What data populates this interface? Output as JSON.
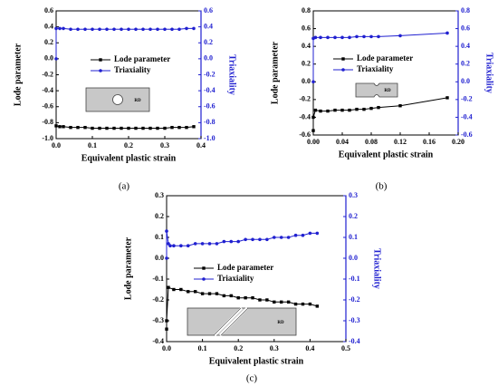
{
  "chart_data": [
    {
      "type": "line",
      "label": "(a)",
      "xlabel": "Equivalent plastic strain",
      "ylabel": "Lode parameter",
      "y2label": "Triaxiality",
      "inset_label": "RD",
      "xlim": [
        0,
        0.4
      ],
      "xticks": [
        {
          "value": 0,
          "label": "0.0"
        },
        0.1,
        0.2,
        0.3,
        0.4
      ],
      "ylim": [
        -1,
        0.6
      ],
      "yticks": [
        {
          "value": -1,
          "label": "-1.0"
        },
        -0.8,
        -0.6,
        -0.4,
        -0.2,
        {
          "value": 0,
          "label": "0.0"
        },
        0.2,
        0.4,
        0.6
      ],
      "y2lim": [
        -1,
        0.6
      ],
      "y2ticks": [
        {
          "value": -1,
          "label": "-1.0"
        },
        -0.8,
        -0.6,
        -0.4,
        -0.2,
        {
          "value": 0,
          "label": "0.0"
        },
        0.2,
        0.4,
        0.6
      ],
      "series": [
        {
          "name": "Lode parameter",
          "color": "#000000",
          "marker": "square",
          "x": [
            0,
            0.01,
            0.02,
            0.04,
            0.06,
            0.08,
            0.1,
            0.12,
            0.14,
            0.16,
            0.18,
            0.2,
            0.22,
            0.24,
            0.26,
            0.28,
            0.3,
            0.32,
            0.34,
            0.36,
            0.38
          ],
          "values": [
            -0.84,
            -0.85,
            -0.85,
            -0.86,
            -0.86,
            -0.86,
            -0.87,
            -0.87,
            -0.87,
            -0.87,
            -0.87,
            -0.87,
            -0.87,
            -0.87,
            -0.87,
            -0.87,
            -0.87,
            -0.86,
            -0.86,
            -0.86,
            -0.85
          ]
        },
        {
          "name": "Triaxiality",
          "color": "#2020d0",
          "marker": "circle",
          "axis": "y2",
          "x": [
            0,
            0,
            0.01,
            0.02,
            0.04,
            0.06,
            0.08,
            0.1,
            0.12,
            0.14,
            0.16,
            0.18,
            0.2,
            0.22,
            0.24,
            0.26,
            0.28,
            0.3,
            0.32,
            0.34,
            0.36,
            0.38
          ],
          "values": [
            0,
            0.38,
            0.38,
            0.38,
            0.37,
            0.37,
            0.37,
            0.37,
            0.37,
            0.37,
            0.37,
            0.37,
            0.37,
            0.37,
            0.37,
            0.37,
            0.37,
            0.37,
            0.37,
            0.37,
            0.38,
            0.38
          ]
        }
      ]
    },
    {
      "type": "line",
      "label": "(b)",
      "xlabel": "Equivalent plastic strain",
      "ylabel": "Lode parameter",
      "y2label": "Triaxiality",
      "inset_label": "RD",
      "xlim": [
        0,
        0.2
      ],
      "xticks": [
        {
          "value": 0,
          "label": "0.00"
        },
        0.04,
        0.08,
        0.12,
        0.16,
        {
          "value": 0.2,
          "label": "0.20"
        }
      ],
      "ylim": [
        -0.6,
        0.8
      ],
      "yticks": [
        -0.6,
        -0.4,
        -0.2,
        {
          "value": 0,
          "label": "0.0"
        },
        0.2,
        0.4,
        0.6,
        0.8
      ],
      "y2lim": [
        -0.6,
        0.8
      ],
      "y2ticks": [
        -0.6,
        -0.4,
        -0.2,
        {
          "value": 0,
          "label": "0.0"
        },
        0.2,
        0.4,
        0.6,
        0.8
      ],
      "series": [
        {
          "name": "Lode parameter",
          "color": "#000000",
          "marker": "square",
          "x": [
            0,
            0,
            0.003,
            0.01,
            0.02,
            0.03,
            0.04,
            0.05,
            0.06,
            0.07,
            0.08,
            0.09,
            0.12,
            0.185
          ],
          "values": [
            -0.55,
            -0.4,
            -0.32,
            -0.33,
            -0.33,
            -0.32,
            -0.32,
            -0.32,
            -0.31,
            -0.31,
            -0.3,
            -0.29,
            -0.27,
            -0.18
          ]
        },
        {
          "name": "Triaxiality",
          "color": "#2020d0",
          "marker": "circle",
          "axis": "y2",
          "x": [
            0,
            0,
            0.003,
            0.01,
            0.02,
            0.03,
            0.04,
            0.05,
            0.06,
            0.07,
            0.08,
            0.09,
            0.12,
            0.185
          ],
          "values": [
            0,
            0.49,
            0.5,
            0.5,
            0.5,
            0.5,
            0.5,
            0.5,
            0.51,
            0.51,
            0.51,
            0.51,
            0.52,
            0.55
          ]
        }
      ]
    },
    {
      "type": "line",
      "label": "(c)",
      "xlabel": "Equivalent plastic strain",
      "ylabel": "Lode parameter",
      "y2label": "Triaxiality",
      "inset_label": "RD",
      "xlim": [
        0,
        0.5
      ],
      "xticks": [
        {
          "value": 0,
          "label": "0.0"
        },
        0.1,
        0.2,
        0.3,
        0.4,
        0.5
      ],
      "ylim": [
        -0.4,
        0.3
      ],
      "yticks": [
        -0.4,
        -0.3,
        -0.2,
        -0.1,
        {
          "value": 0,
          "label": "0.0"
        },
        0.1,
        0.2,
        0.3
      ],
      "y2lim": [
        -0.4,
        0.3
      ],
      "y2ticks": [
        -0.4,
        -0.3,
        -0.2,
        -0.1,
        {
          "value": 0,
          "label": "0.0"
        },
        0.1,
        0.2,
        0.3
      ],
      "series": [
        {
          "name": "Lode parameter",
          "color": "#000000",
          "marker": "square",
          "x": [
            0,
            0,
            0.005,
            0.02,
            0.04,
            0.06,
            0.08,
            0.1,
            0.12,
            0.14,
            0.16,
            0.18,
            0.2,
            0.22,
            0.24,
            0.26,
            0.28,
            0.3,
            0.32,
            0.34,
            0.36,
            0.38,
            0.4,
            0.42
          ],
          "values": [
            -0.34,
            -0.3,
            -0.14,
            -0.15,
            -0.15,
            -0.16,
            -0.16,
            -0.17,
            -0.17,
            -0.17,
            -0.18,
            -0.18,
            -0.19,
            -0.19,
            -0.19,
            -0.2,
            -0.2,
            -0.21,
            -0.21,
            -0.21,
            -0.22,
            -0.22,
            -0.22,
            -0.23
          ]
        },
        {
          "name": "Triaxiality",
          "color": "#2020d0",
          "marker": "circle",
          "axis": "y2",
          "x": [
            0,
            0,
            0.005,
            0.01,
            0.02,
            0.04,
            0.06,
            0.08,
            0.1,
            0.12,
            0.14,
            0.16,
            0.18,
            0.2,
            0.22,
            0.24,
            0.26,
            0.28,
            0.3,
            0.32,
            0.34,
            0.36,
            0.38,
            0.4,
            0.42
          ],
          "values": [
            0,
            0.13,
            0.07,
            0.06,
            0.06,
            0.06,
            0.06,
            0.07,
            0.07,
            0.07,
            0.07,
            0.08,
            0.08,
            0.08,
            0.09,
            0.09,
            0.09,
            0.09,
            0.1,
            0.1,
            0.1,
            0.11,
            0.11,
            0.12,
            0.12
          ]
        }
      ]
    }
  ]
}
